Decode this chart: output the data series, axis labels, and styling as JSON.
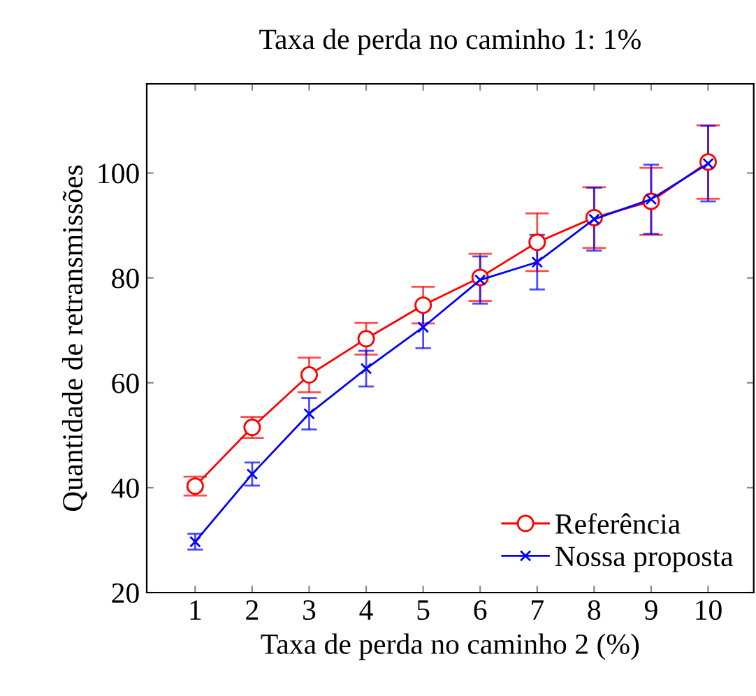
{
  "chart_data": {
    "type": "line",
    "title": "Taxa de perda no caminho 1: 1%",
    "xlabel": "Taxa de perda no caminho 2 (%)",
    "ylabel": "Quantidade de retransmissões",
    "x": [
      1,
      2,
      3,
      4,
      5,
      6,
      7,
      8,
      9,
      10
    ],
    "xlim": [
      0.15,
      10.8
    ],
    "xticks": [
      1,
      2,
      3,
      4,
      5,
      6,
      7,
      8,
      9,
      10
    ],
    "ylim": [
      20,
      117
    ],
    "yticks": [
      20,
      40,
      60,
      80,
      100
    ],
    "grid": false,
    "legend": "bottom right",
    "series": [
      {
        "name": "Referência",
        "color": "#ff0000",
        "marker": "circle",
        "values": [
          40.3,
          51.5,
          61.5,
          68.4,
          74.8,
          80.1,
          86.8,
          91.5,
          94.6,
          102.1
        ],
        "errors": [
          1.8,
          2,
          3.3,
          3,
          3.5,
          4.5,
          5.5,
          5.8,
          6.4,
          7
        ]
      },
      {
        "name": "Nossa proposta",
        "color": "#0000ff",
        "marker": "cross",
        "values": [
          29.7,
          42.6,
          54.1,
          62.7,
          70.6,
          79.6,
          83,
          91.2,
          95,
          101.8
        ],
        "errors": [
          1.5,
          2.2,
          3,
          3.4,
          4,
          4.5,
          5.2,
          6,
          6.6,
          7.2
        ]
      }
    ]
  }
}
